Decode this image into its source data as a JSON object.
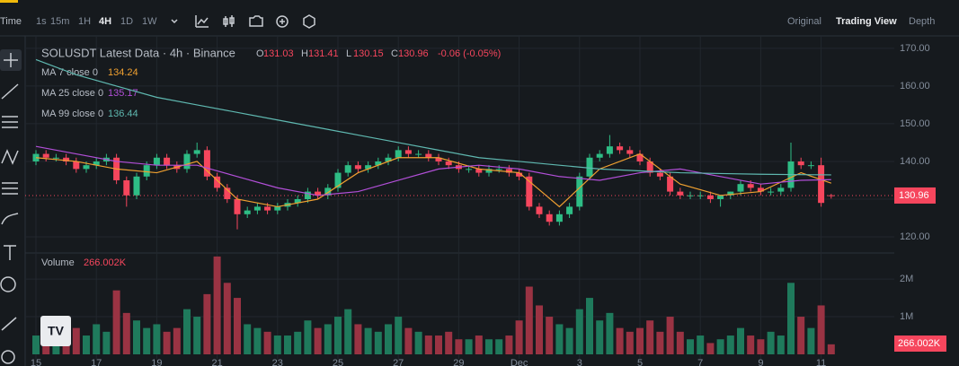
{
  "toolbar": {
    "time": "Time",
    "intervals": [
      "1s",
      "15m",
      "1H",
      "4H",
      "1D",
      "1W"
    ],
    "views": [
      "Original",
      "Trading View",
      "Depth"
    ]
  },
  "chart_data": {
    "type": "candlestick",
    "title": "SOLUSDT Latest Data · 4h · Binance",
    "ohlc_labels": [
      "O",
      "H",
      "L",
      "C"
    ],
    "change": "-0.06 (-0.05%)",
    "up_color": "#2ebd85",
    "down_color": "#f6465d",
    "volume_up_color": "#1f7a5c",
    "volume_down_color": "#9a3343",
    "categories": [
      "15",
      null,
      null,
      null,
      null,
      null,
      "17",
      null,
      null,
      null,
      null,
      null,
      "19",
      null,
      null,
      null,
      null,
      null,
      "21",
      null,
      null,
      null,
      null,
      null,
      "23",
      null,
      null,
      null,
      null,
      null,
      "25",
      null,
      null,
      null,
      null,
      null,
      "27",
      null,
      null,
      null,
      null,
      null,
      "29",
      null,
      null,
      null,
      null,
      null,
      "Dec",
      null,
      null,
      null,
      null,
      null,
      "3",
      null,
      null,
      null,
      null,
      null,
      "5",
      null,
      null,
      null,
      null,
      null,
      "7",
      null,
      null,
      null,
      null,
      null,
      "9",
      null,
      null,
      null,
      null,
      null,
      "11",
      null
    ],
    "open": [
      140,
      142,
      141,
      141,
      140,
      138,
      139,
      140,
      141,
      135,
      131,
      136,
      139,
      141,
      139,
      138,
      142,
      143,
      136,
      133,
      130,
      126,
      127,
      128,
      127,
      128,
      129,
      130,
      132,
      131,
      133,
      137,
      139,
      138,
      139,
      140,
      141,
      143,
      142,
      142,
      141,
      140,
      139,
      138,
      138,
      137,
      138,
      138,
      137,
      136,
      128,
      126,
      124,
      126,
      128,
      136,
      141,
      142,
      144,
      143,
      142,
      140,
      137,
      136,
      132,
      131,
      131,
      131,
      130,
      131,
      132,
      134,
      133,
      132,
      132,
      133,
      140,
      139,
      139,
      131.03
    ],
    "high": [
      143,
      143,
      142,
      142,
      141,
      140,
      141,
      142,
      142,
      136,
      137,
      140,
      142,
      142,
      140,
      143,
      145,
      144,
      137,
      134,
      131,
      128,
      129,
      129,
      129,
      130,
      131,
      133,
      133,
      134,
      138,
      140,
      140,
      140,
      141,
      142,
      144,
      144,
      143,
      143,
      142,
      141,
      140,
      139,
      139,
      139,
      139,
      139,
      138,
      137,
      129,
      127,
      127,
      129,
      137,
      142,
      143,
      147,
      145,
      144,
      143,
      141,
      138,
      137,
      133,
      132,
      132,
      132,
      131,
      132,
      135,
      135,
      134,
      133,
      134,
      145,
      141,
      140,
      141,
      131.41
    ],
    "low": [
      139,
      140,
      140,
      139,
      137,
      137,
      138,
      139,
      134,
      128,
      130,
      135,
      138,
      138,
      137,
      137,
      141,
      135,
      132,
      129,
      122,
      125,
      126,
      126,
      126,
      127,
      128,
      129,
      130,
      130,
      132,
      136,
      137,
      137,
      138,
      139,
      140,
      141,
      141,
      140,
      139,
      138,
      137,
      137,
      136,
      136,
      137,
      136,
      135,
      127,
      125,
      123,
      123,
      125,
      127,
      135,
      140,
      141,
      142,
      141,
      139,
      136,
      135,
      131,
      130,
      130,
      130,
      129,
      128,
      130,
      131,
      132,
      131,
      131,
      131,
      132,
      138,
      138,
      128,
      130.15
    ],
    "close": [
      142,
      141,
      141,
      140,
      138,
      139,
      140,
      141,
      135,
      131,
      136,
      139,
      141,
      139,
      138,
      142,
      143,
      136,
      133,
      130,
      126,
      127,
      128,
      127,
      128,
      129,
      130,
      132,
      131,
      133,
      137,
      139,
      138,
      139,
      140,
      141,
      143,
      142,
      142,
      141,
      140,
      139,
      138,
      138,
      137,
      138,
      138,
      137,
      136,
      128,
      126,
      124,
      126,
      128,
      136,
      141,
      142,
      144,
      143,
      142,
      140,
      137,
      136,
      132,
      131,
      131,
      131,
      130,
      131,
      132,
      134,
      133,
      132,
      132,
      133,
      140,
      139,
      139,
      129,
      130.96
    ],
    "volume": [
      500000,
      400000,
      300000,
      600000,
      700000,
      500000,
      800000,
      600000,
      1700000,
      1100000,
      900000,
      700000,
      800000,
      600000,
      700000,
      1200000,
      1000000,
      1600000,
      2600000,
      1900000,
      1500000,
      800000,
      700000,
      600000,
      500000,
      500000,
      600000,
      900000,
      700000,
      800000,
      1000000,
      1200000,
      800000,
      700000,
      600000,
      800000,
      1000000,
      700000,
      600000,
      500000,
      500000,
      600000,
      400000,
      400000,
      500000,
      400000,
      400000,
      500000,
      900000,
      1800000,
      1300000,
      1000000,
      800000,
      700000,
      1200000,
      1500000,
      900000,
      1100000,
      700000,
      600000,
      700000,
      900000,
      600000,
      1000000,
      600000,
      400000,
      500000,
      300000,
      400000,
      500000,
      700000,
      500000,
      400000,
      600000,
      500000,
      1900000,
      1000000,
      700000,
      1300000,
      266002
    ],
    "volume_title": "Volume",
    "volume_label": "266.002K",
    "series": [
      {
        "name": "MA 7 close 0",
        "color": "#f0a030",
        "x": [
          0,
          4,
          8,
          12,
          16,
          20,
          24,
          28,
          32,
          36,
          40,
          44,
          48,
          52,
          56,
          60,
          64,
          68,
          72,
          76,
          79
        ],
        "values": [
          141,
          140,
          138,
          137,
          140,
          130,
          128,
          130,
          137,
          141,
          141,
          138,
          137,
          128,
          138,
          142,
          134,
          131,
          132,
          137,
          134.24
        ]
      },
      {
        "name": "MA 25 close 0",
        "color": "#b24fd8",
        "x": [
          0,
          4,
          8,
          12,
          16,
          20,
          24,
          28,
          32,
          36,
          40,
          44,
          48,
          52,
          56,
          60,
          64,
          68,
          72,
          76,
          79
        ],
        "values": [
          144,
          142,
          140,
          139,
          139,
          136,
          133,
          131,
          132,
          135,
          138,
          139,
          138,
          136,
          135,
          137,
          138,
          136,
          134,
          135,
          135.17
        ]
      },
      {
        "name": "MA 99 close 0",
        "color": "#5fb8b0",
        "x": [
          0,
          4,
          8,
          12,
          16,
          20,
          24,
          28,
          32,
          36,
          40,
          44,
          48,
          52,
          56,
          60,
          64,
          68,
          72,
          76,
          79
        ],
        "values": [
          167,
          163,
          160,
          157,
          155,
          153,
          151,
          149,
          147,
          145,
          143,
          141,
          140,
          139,
          138,
          137.5,
          137,
          136.8,
          136.6,
          136.5,
          136.44
        ]
      }
    ],
    "ylim": [
      116.2,
      173.3
    ],
    "yticks": [
      {
        "value": 120,
        "label": "120.00"
      },
      {
        "value": 130,
        "label": "130.00"
      },
      {
        "value": 140,
        "label": "140.00"
      },
      {
        "value": 150,
        "label": "150.00"
      },
      {
        "value": 160,
        "label": "160.00"
      },
      {
        "value": 170,
        "label": "170.00"
      }
    ],
    "y2lim": [
      0,
      2670000
    ],
    "y2ticks": [
      {
        "value": 1000000,
        "label": "1M"
      },
      {
        "value": 2000000,
        "label": "2M"
      }
    ],
    "grid": true
  }
}
